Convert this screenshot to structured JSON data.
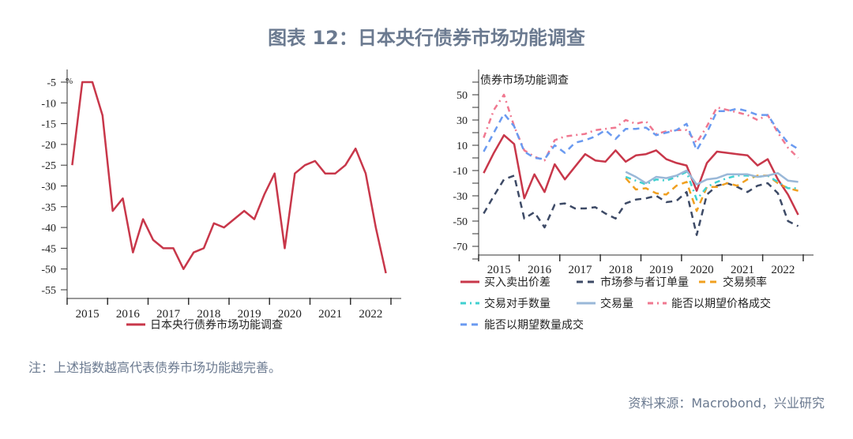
{
  "title": "图表 12：日本央行债券市场功能调查",
  "note": "注：上述指数越高代表债券市场功能越完善。",
  "source": "资料来源：Macrobond，兴业研究",
  "chart_data": [
    {
      "type": "line",
      "title": "",
      "ylabel": "%",
      "ylim": [
        -57,
        -3
      ],
      "yticks": [
        -5,
        -10,
        -15,
        -20,
        -25,
        -30,
        -35,
        -40,
        -45,
        -50,
        -55
      ],
      "xticks": [
        "2015",
        "2016",
        "2017",
        "2018",
        "2019",
        "2020",
        "2021",
        "2022"
      ],
      "x_start": "2015Q1",
      "frequency": "quarterly",
      "legend": "bottom",
      "series": [
        {
          "name": "日本央行债券市场功能调查",
          "color": "#c8374a",
          "style": "solid",
          "start": 0,
          "values": [
            -25,
            -5,
            -5,
            -13,
            -36,
            -33,
            -46,
            -38,
            -43,
            -45,
            -45,
            -50,
            -46,
            -45,
            -39,
            -40,
            -38,
            -36,
            -38,
            -32,
            -27,
            -45,
            -27,
            -25,
            -24,
            -27,
            -27,
            -25,
            -21,
            -27,
            -40,
            -51
          ]
        }
      ]
    },
    {
      "type": "line",
      "title": "债券市场功能调查",
      "ylim": [
        -75,
        58
      ],
      "yticks": [
        50,
        30,
        10,
        -10,
        -30,
        -50,
        -70
      ],
      "xticks": [
        "2015",
        "2016",
        "2017",
        "2018",
        "2019",
        "2020",
        "2021",
        "2022"
      ],
      "x_start": "2015Q1",
      "frequency": "quarterly",
      "legend": "bottom",
      "series": [
        {
          "name": "买入卖出价差",
          "color": "#c8374a",
          "style": "solid",
          "start": 0,
          "values": [
            -12,
            4,
            18,
            11,
            -32,
            -13,
            -27,
            -5,
            -17,
            -7,
            3,
            -2,
            -3,
            6,
            -3,
            2,
            3,
            6,
            -1,
            -4,
            -6,
            -26,
            -4,
            5,
            4,
            3,
            2,
            -6,
            -1,
            -17,
            -29,
            -45
          ]
        },
        {
          "name": "市场参与者订单量",
          "color": "#3d4a66",
          "style": "dash",
          "start": 0,
          "values": [
            -44,
            -30,
            -17,
            -14,
            -48,
            -43,
            -55,
            -37,
            -36,
            -40,
            -40,
            -39,
            -44,
            -48,
            -36,
            -33,
            -32,
            -30,
            -35,
            -34,
            -27,
            -61,
            -29,
            -22,
            -20,
            -23,
            -27,
            -22,
            -20,
            -28,
            -50,
            -54
          ]
        },
        {
          "name": "交易频率",
          "color": "#f0a020",
          "style": "dash",
          "start": 14,
          "values": [
            -16,
            -25,
            -24,
            -28,
            -29,
            -22,
            -19,
            -42,
            -23,
            -23,
            -20,
            -22,
            -17,
            -14,
            -14,
            -20,
            -24,
            -26
          ]
        },
        {
          "name": "交易对手数量",
          "color": "#40d0d0",
          "style": "dashdot",
          "start": 14,
          "values": [
            -15,
            -18,
            -21,
            -17,
            -18,
            -15,
            -11,
            -33,
            -23,
            -19,
            -16,
            -14,
            -14,
            -15,
            -14,
            -19,
            -24,
            -24
          ]
        },
        {
          "name": "交易量",
          "color": "#9ab8d8",
          "style": "solid",
          "start": 14,
          "values": [
            -11,
            -15,
            -20,
            -15,
            -16,
            -14,
            -10,
            -21,
            -17,
            -16,
            -13,
            -13,
            -13,
            -15,
            -14,
            -12,
            -18,
            -19
          ]
        },
        {
          "name": "能否以期望价格成交",
          "color": "#f07890",
          "style": "dashdot",
          "start": 0,
          "values": [
            16,
            38,
            50,
            25,
            6,
            1,
            -2,
            14,
            17,
            18,
            19,
            22,
            23,
            24,
            30,
            27,
            29,
            19,
            21,
            22,
            22,
            12,
            25,
            40,
            38,
            36,
            34,
            30,
            34,
            20,
            8,
            0
          ]
        },
        {
          "name": "能否以期望数量成交",
          "color": "#6a9af0",
          "style": "dash",
          "start": 0,
          "values": [
            5,
            20,
            35,
            25,
            5,
            0,
            -1,
            10,
            4,
            12,
            14,
            17,
            22,
            15,
            23,
            23,
            24,
            18,
            20,
            22,
            27,
            6,
            20,
            37,
            37,
            39,
            37,
            34,
            34,
            22,
            12,
            7
          ]
        }
      ]
    }
  ]
}
